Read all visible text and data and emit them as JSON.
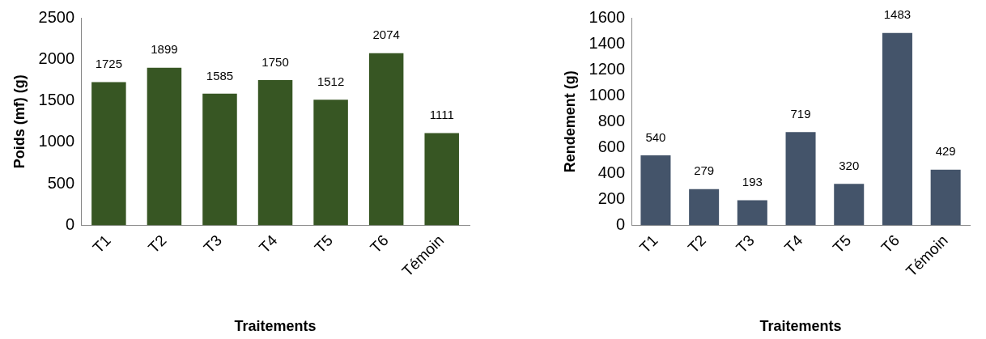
{
  "chart_data": [
    {
      "type": "bar",
      "xlabel": "Traitements",
      "ylabel": "Poids (mf) (g)",
      "categories": [
        "T1",
        "T2",
        "T3",
        "T4",
        "T5",
        "T6",
        "Témoin"
      ],
      "series": [
        {
          "color": "#375623",
          "values": [
            1725,
            1899,
            1585,
            1750,
            1512,
            2074,
            1111
          ]
        }
      ],
      "ylim": [
        0,
        2500
      ],
      "yticks": [
        0,
        500,
        1000,
        1500,
        2000,
        2500
      ],
      "grid": false,
      "legend": false,
      "data_labels": true
    },
    {
      "type": "bar",
      "xlabel": "Traitements",
      "ylabel": "Rendement (g)",
      "categories": [
        "T1",
        "T2",
        "T3",
        "T4",
        "T5",
        "T6",
        "Témoin"
      ],
      "series": [
        {
          "color": "#44546a",
          "values": [
            540,
            279,
            193,
            719,
            320,
            1483,
            429
          ]
        }
      ],
      "ylim": [
        0,
        1600
      ],
      "yticks": [
        0,
        200,
        400,
        600,
        800,
        1000,
        1200,
        1400,
        1600
      ],
      "grid": false,
      "legend": false,
      "data_labels": true
    }
  ]
}
